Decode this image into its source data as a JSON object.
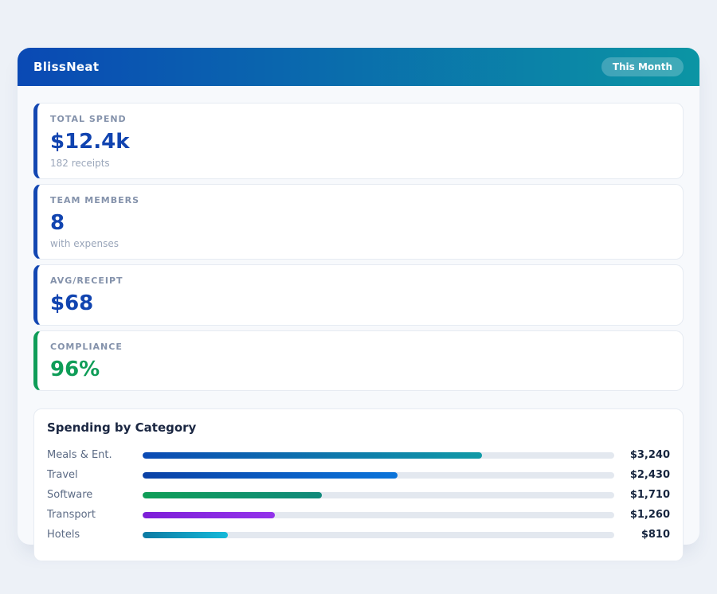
{
  "header": {
    "title": "BlissNeat",
    "badge": "This Month"
  },
  "colors": {
    "header_gradient_from": "#0a49b4",
    "header_gradient_to": "#0b95a4",
    "accent_blue": "#1347b2",
    "accent_green": "#0f9d58",
    "value_blue": "#1144b0",
    "track_gray": "#e3e8ef"
  },
  "stats": [
    {
      "label": "TOTAL SPEND",
      "value": "$12.4k",
      "sub": "182 receipts",
      "accent": "#1347b2",
      "value_color": "#1144b0"
    },
    {
      "label": "TEAM MEMBERS",
      "value": "8",
      "sub": "with expenses",
      "accent": "#1347b2",
      "value_color": "#1144b0"
    },
    {
      "label": "AVG/RECEIPT",
      "value": "$68",
      "sub": "",
      "accent": "#1347b2",
      "value_color": "#1144b0"
    },
    {
      "label": "COMPLIANCE",
      "value": "96%",
      "sub": "",
      "accent": "#0f9d58",
      "value_color": "#0f9d58"
    }
  ],
  "chart": {
    "title": "Spending by Category",
    "rows": [
      {
        "label": "Meals & Ent.",
        "amount": "$3,240",
        "pct": 72,
        "color_from": "#0b4ab4",
        "color_to": "#109aa6"
      },
      {
        "label": "Travel",
        "amount": "$2,430",
        "pct": 54,
        "color_from": "#0b42a6",
        "color_to": "#0b74da"
      },
      {
        "label": "Software",
        "amount": "$1,710",
        "pct": 38,
        "color_from": "#0f9e57",
        "color_to": "#11897b"
      },
      {
        "label": "Transport",
        "amount": "$1,260",
        "pct": 28,
        "color_from": "#7d1fd8",
        "color_to": "#9333ea"
      },
      {
        "label": "Hotels",
        "amount": "$810",
        "pct": 18,
        "color_from": "#0d7aa3",
        "color_to": "#14b9d9"
      }
    ]
  },
  "chart_data": {
    "type": "bar",
    "orientation": "horizontal",
    "title": "Spending by Category",
    "categories": [
      "Meals & Ent.",
      "Travel",
      "Software",
      "Transport",
      "Hotels"
    ],
    "values": [
      3240,
      2430,
      1710,
      1260,
      810
    ],
    "value_labels": [
      "$3,240",
      "$2,430",
      "$1,710",
      "$1,260",
      "$810"
    ],
    "xlim": [
      0,
      4500
    ],
    "grid": false,
    "legend": false
  }
}
